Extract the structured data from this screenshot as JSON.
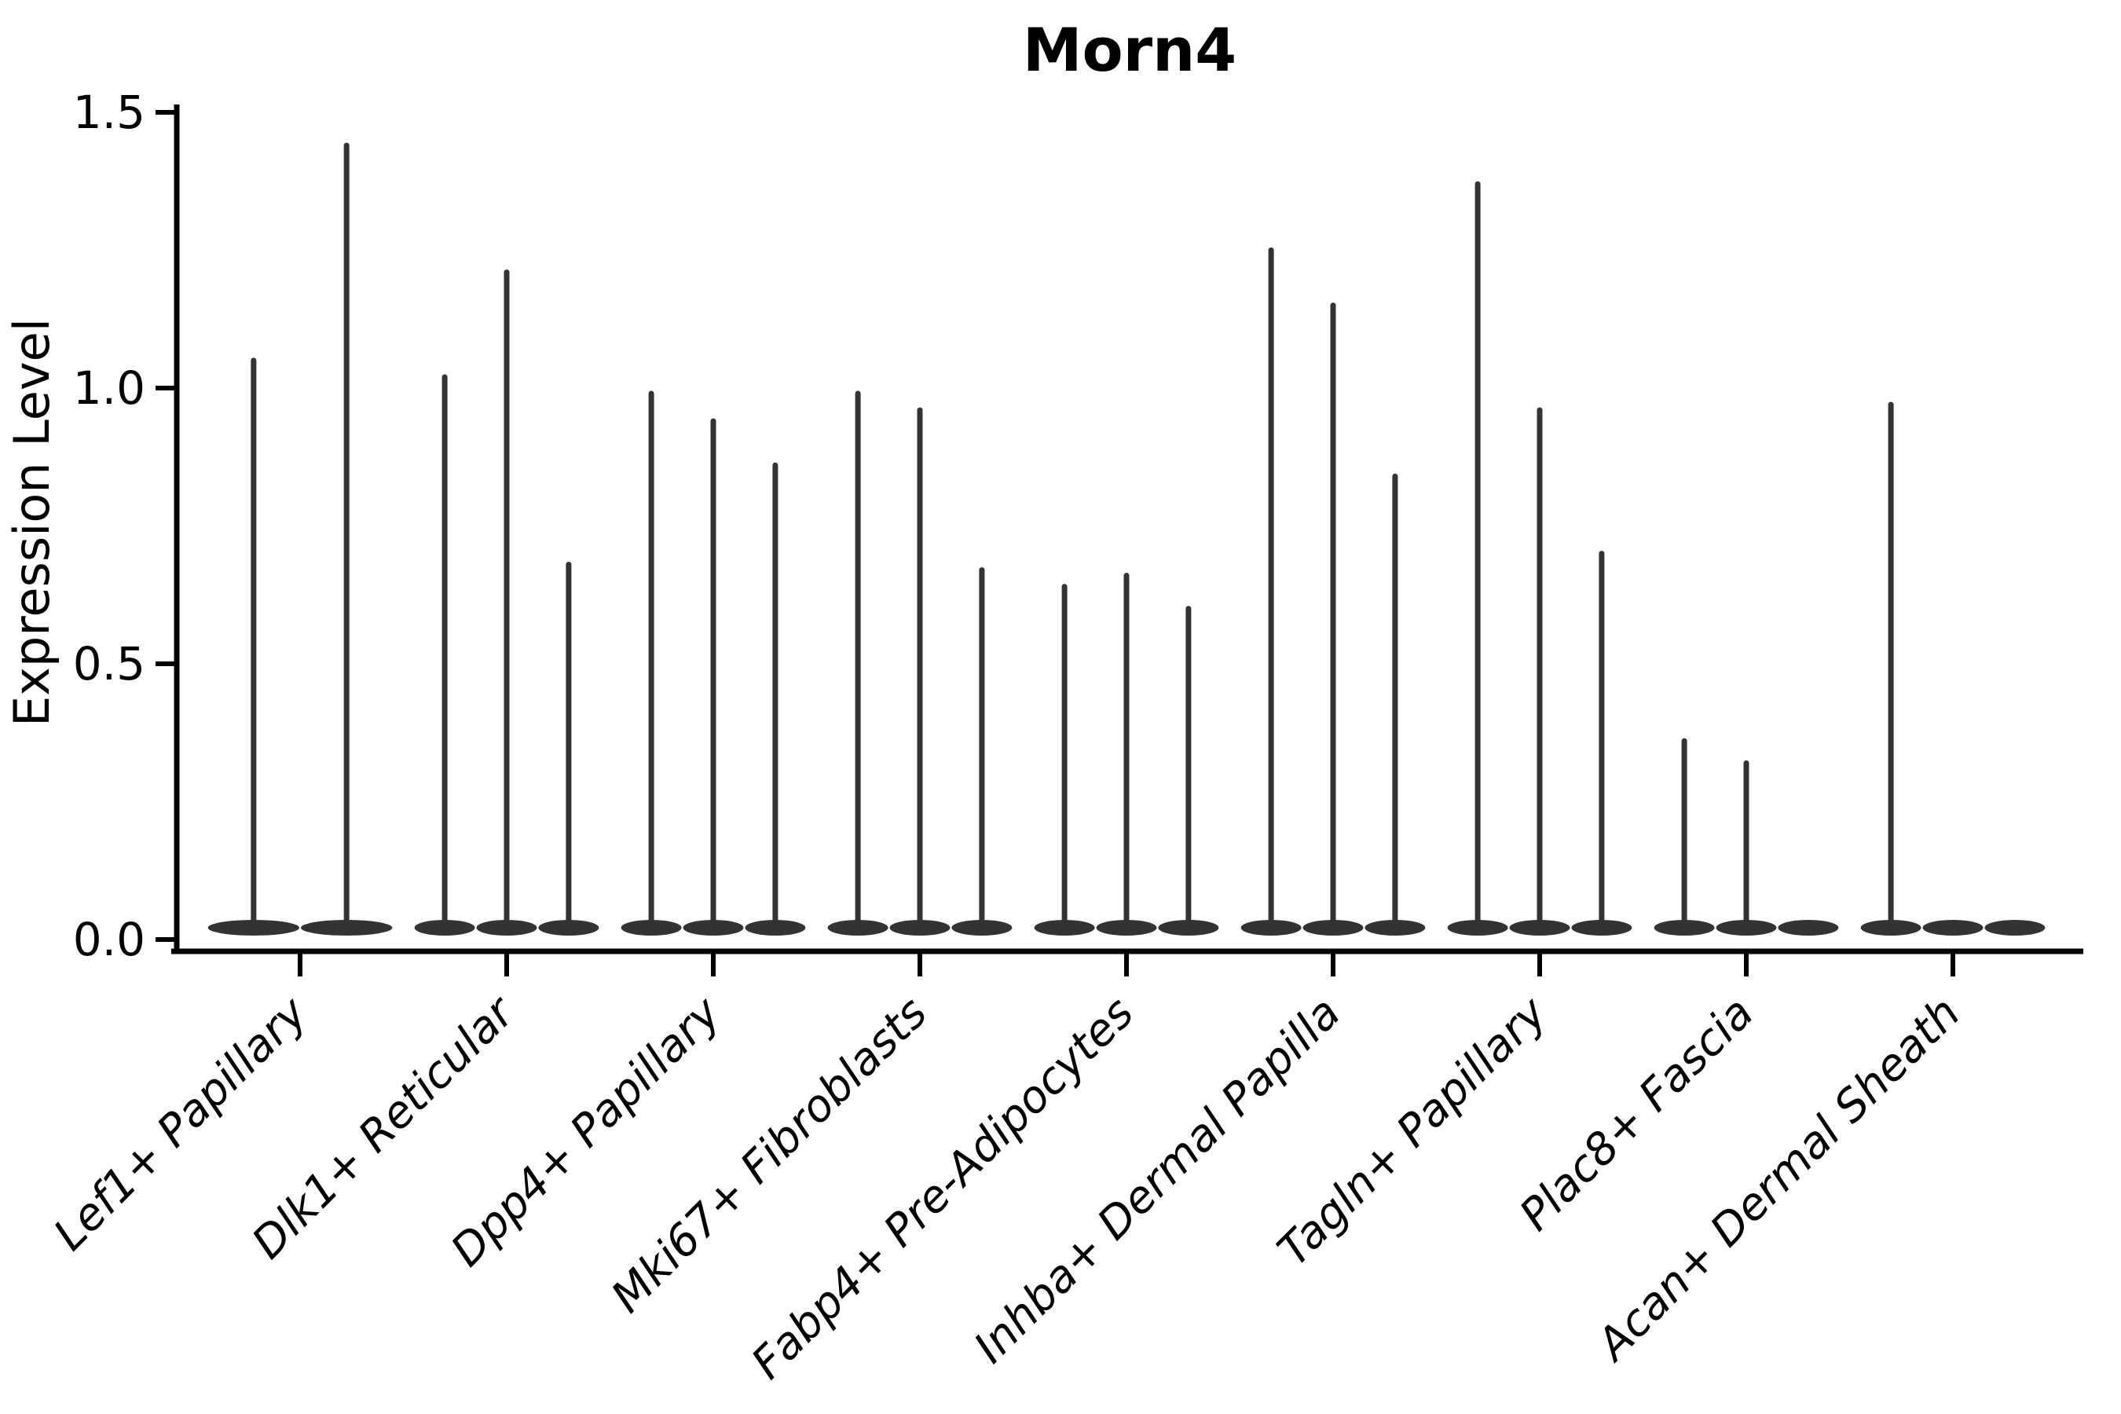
{
  "colors": {
    "violin_stroke": "#333333",
    "axis": "#000000",
    "text": "#000000",
    "background": "#ffffff"
  },
  "chart_data": {
    "type": "violin",
    "title": "Morn4",
    "xlabel": "",
    "ylabel": "Expression Level",
    "ylim": [
      0,
      1.5
    ],
    "ytick_labels": [
      "0.0",
      "0.5",
      "1.0",
      "1.5"
    ],
    "ytick_values": [
      0.0,
      0.5,
      1.0,
      1.5
    ],
    "grid": false,
    "legend": "none",
    "x_tick_rotation_deg": 45,
    "shape_note": "each violin is a narrow spike from a flat dense base at 0 up to its max expression value; violins with max 0 are flat pancakes at 0",
    "categories": [
      "Lef1+ Papillary",
      "Dlk1+ Reticular",
      "Dpp4+ Papillary",
      "Mki67+ Fibroblasts",
      "Fabp4+ Pre-Adipocytes",
      "Inhba+ Dermal Papilla",
      "Tagln+ Papillary",
      "Plac8+ Fascia",
      "Acan+ Dermal Sheath"
    ],
    "groups": [
      {
        "label": "Lef1+ Papillary",
        "violin_max": [
          1.05,
          1.44
        ]
      },
      {
        "label": "Dlk1+ Reticular",
        "violin_max": [
          1.02,
          1.21,
          0.68
        ]
      },
      {
        "label": "Dpp4+ Papillary",
        "violin_max": [
          0.99,
          0.94,
          0.86
        ]
      },
      {
        "label": "Mki67+ Fibroblasts",
        "violin_max": [
          0.99,
          0.96,
          0.67
        ]
      },
      {
        "label": "Fabp4+ Pre-Adipocytes",
        "violin_max": [
          0.64,
          0.66,
          0.6
        ]
      },
      {
        "label": "Inhba+ Dermal Papilla",
        "violin_max": [
          1.25,
          1.15,
          0.84
        ]
      },
      {
        "label": "Tagln+ Papillary",
        "violin_max": [
          1.37,
          0.96,
          0.7
        ]
      },
      {
        "label": "Plac8+ Fascia",
        "violin_max": [
          0.36,
          0.32,
          0.0
        ]
      },
      {
        "label": "Acan+ Dermal Sheath",
        "violin_max": [
          0.97,
          0.0,
          0.0
        ]
      }
    ]
  }
}
